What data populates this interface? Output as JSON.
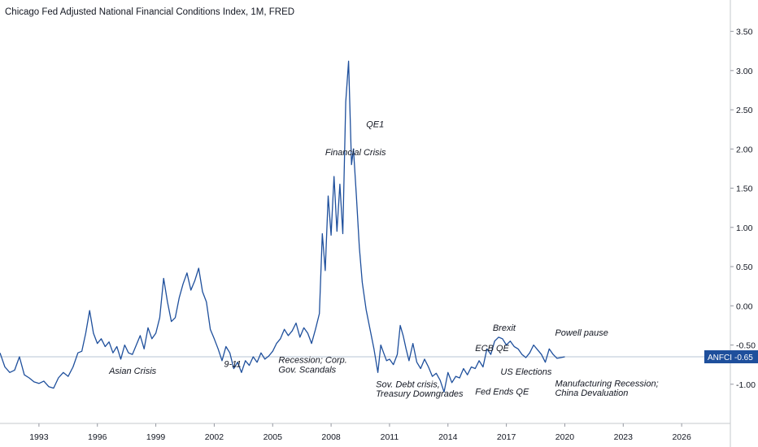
{
  "chart_data": {
    "type": "line",
    "title": "Chicago Fed Adjusted National Financial Conditions Index, 1M, FRED",
    "series": [
      {
        "name": "ANFCI",
        "color": "#1e4f9c",
        "points": [
          [
            1991.0,
            -0.6
          ],
          [
            1991.25,
            -0.78
          ],
          [
            1991.5,
            -0.85
          ],
          [
            1991.75,
            -0.82
          ],
          [
            1992.0,
            -0.65
          ],
          [
            1992.25,
            -0.88
          ],
          [
            1992.5,
            -0.92
          ],
          [
            1992.75,
            -0.97
          ],
          [
            1993.0,
            -0.99
          ],
          [
            1993.25,
            -0.96
          ],
          [
            1993.5,
            -1.03
          ],
          [
            1993.75,
            -1.05
          ],
          [
            1994.0,
            -0.92
          ],
          [
            1994.25,
            -0.85
          ],
          [
            1994.5,
            -0.9
          ],
          [
            1994.75,
            -0.78
          ],
          [
            1995.0,
            -0.6
          ],
          [
            1995.2,
            -0.58
          ],
          [
            1995.4,
            -0.35
          ],
          [
            1995.6,
            -0.06
          ],
          [
            1995.8,
            -0.35
          ],
          [
            1996.0,
            -0.48
          ],
          [
            1996.2,
            -0.42
          ],
          [
            1996.4,
            -0.52
          ],
          [
            1996.6,
            -0.46
          ],
          [
            1996.8,
            -0.6
          ],
          [
            1997.0,
            -0.52
          ],
          [
            1997.2,
            -0.68
          ],
          [
            1997.4,
            -0.5
          ],
          [
            1997.6,
            -0.6
          ],
          [
            1997.8,
            -0.62
          ],
          [
            1998.0,
            -0.5
          ],
          [
            1998.2,
            -0.38
          ],
          [
            1998.4,
            -0.55
          ],
          [
            1998.6,
            -0.28
          ],
          [
            1998.8,
            -0.42
          ],
          [
            1999.0,
            -0.35
          ],
          [
            1999.2,
            -0.15
          ],
          [
            1999.4,
            0.35
          ],
          [
            1999.6,
            0.05
          ],
          [
            1999.8,
            -0.2
          ],
          [
            2000.0,
            -0.15
          ],
          [
            2000.2,
            0.1
          ],
          [
            2000.4,
            0.28
          ],
          [
            2000.6,
            0.42
          ],
          [
            2000.8,
            0.2
          ],
          [
            2001.0,
            0.32
          ],
          [
            2001.2,
            0.48
          ],
          [
            2001.4,
            0.18
          ],
          [
            2001.6,
            0.05
          ],
          [
            2001.8,
            -0.3
          ],
          [
            2002.0,
            -0.42
          ],
          [
            2002.2,
            -0.55
          ],
          [
            2002.4,
            -0.7
          ],
          [
            2002.6,
            -0.52
          ],
          [
            2002.8,
            -0.6
          ],
          [
            2003.0,
            -0.8
          ],
          [
            2003.2,
            -0.72
          ],
          [
            2003.4,
            -0.85
          ],
          [
            2003.6,
            -0.7
          ],
          [
            2003.8,
            -0.76
          ],
          [
            2004.0,
            -0.65
          ],
          [
            2004.2,
            -0.72
          ],
          [
            2004.4,
            -0.6
          ],
          [
            2004.6,
            -0.68
          ],
          [
            2004.8,
            -0.64
          ],
          [
            2005.0,
            -0.58
          ],
          [
            2005.2,
            -0.48
          ],
          [
            2005.4,
            -0.42
          ],
          [
            2005.6,
            -0.3
          ],
          [
            2005.8,
            -0.38
          ],
          [
            2006.0,
            -0.32
          ],
          [
            2006.2,
            -0.22
          ],
          [
            2006.4,
            -0.4
          ],
          [
            2006.6,
            -0.28
          ],
          [
            2006.8,
            -0.35
          ],
          [
            2007.0,
            -0.48
          ],
          [
            2007.2,
            -0.3
          ],
          [
            2007.4,
            -0.1
          ],
          [
            2007.55,
            0.92
          ],
          [
            2007.7,
            0.45
          ],
          [
            2007.85,
            1.4
          ],
          [
            2008.0,
            0.9
          ],
          [
            2008.15,
            1.65
          ],
          [
            2008.3,
            0.95
          ],
          [
            2008.45,
            1.55
          ],
          [
            2008.6,
            0.92
          ],
          [
            2008.75,
            2.6
          ],
          [
            2008.9,
            3.12
          ],
          [
            2009.05,
            1.8
          ],
          [
            2009.15,
            2.0
          ],
          [
            2009.3,
            1.4
          ],
          [
            2009.45,
            0.75
          ],
          [
            2009.6,
            0.3
          ],
          [
            2009.8,
            -0.05
          ],
          [
            2010.0,
            -0.3
          ],
          [
            2010.2,
            -0.55
          ],
          [
            2010.4,
            -0.85
          ],
          [
            2010.55,
            -0.5
          ],
          [
            2010.7,
            -0.6
          ],
          [
            2010.85,
            -0.7
          ],
          [
            2011.0,
            -0.68
          ],
          [
            2011.2,
            -0.75
          ],
          [
            2011.4,
            -0.62
          ],
          [
            2011.55,
            -0.25
          ],
          [
            2011.7,
            -0.38
          ],
          [
            2011.85,
            -0.55
          ],
          [
            2012.0,
            -0.7
          ],
          [
            2012.2,
            -0.48
          ],
          [
            2012.4,
            -0.72
          ],
          [
            2012.6,
            -0.8
          ],
          [
            2012.8,
            -0.68
          ],
          [
            2013.0,
            -0.78
          ],
          [
            2013.2,
            -0.9
          ],
          [
            2013.4,
            -0.86
          ],
          [
            2013.6,
            -0.95
          ],
          [
            2013.8,
            -1.1
          ],
          [
            2014.0,
            -0.85
          ],
          [
            2014.2,
            -0.98
          ],
          [
            2014.4,
            -0.9
          ],
          [
            2014.6,
            -0.92
          ],
          [
            2014.8,
            -0.8
          ],
          [
            2015.0,
            -0.88
          ],
          [
            2015.2,
            -0.78
          ],
          [
            2015.4,
            -0.8
          ],
          [
            2015.6,
            -0.7
          ],
          [
            2015.8,
            -0.78
          ],
          [
            2016.0,
            -0.55
          ],
          [
            2016.2,
            -0.62
          ],
          [
            2016.4,
            -0.45
          ],
          [
            2016.6,
            -0.4
          ],
          [
            2016.8,
            -0.42
          ],
          [
            2017.0,
            -0.5
          ],
          [
            2017.2,
            -0.45
          ],
          [
            2017.4,
            -0.52
          ],
          [
            2017.6,
            -0.55
          ],
          [
            2017.8,
            -0.62
          ],
          [
            2018.0,
            -0.66
          ],
          [
            2018.2,
            -0.6
          ],
          [
            2018.4,
            -0.5
          ],
          [
            2018.6,
            -0.56
          ],
          [
            2018.8,
            -0.62
          ],
          [
            2019.0,
            -0.72
          ],
          [
            2019.2,
            -0.55
          ],
          [
            2019.4,
            -0.62
          ],
          [
            2019.6,
            -0.67
          ],
          [
            2019.8,
            -0.66
          ],
          [
            2020.0,
            -0.65
          ]
        ]
      }
    ],
    "x_ticks": [
      "1993",
      "1996",
      "1999",
      "2002",
      "2005",
      "2008",
      "2011",
      "2014",
      "2017",
      "2020",
      "2023",
      "2026"
    ],
    "y_ticks": [
      "3.50",
      "3.00",
      "2.50",
      "2.00",
      "1.50",
      "1.00",
      "0.50",
      "0.00",
      "-0.50",
      "-1.00"
    ],
    "xlim": [
      1991.0,
      2028.5
    ],
    "ylim": [
      -1.5,
      3.9
    ],
    "grid": false,
    "last_value": {
      "label": "ANFCI",
      "value": "-0.65",
      "color": "#1e4f9c"
    },
    "annotations": [
      {
        "text": "Asian Crisis",
        "x": 1996.6,
        "y": -0.87
      },
      {
        "text": "9-11",
        "x": 2002.5,
        "y": -0.78
      },
      {
        "text": "Recession; Corp.",
        "x": 2005.3,
        "y": -0.73
      },
      {
        "text": "Gov. Scandals",
        "x": 2005.3,
        "y": -0.85
      },
      {
        "text": "Financial Crisis",
        "x": 2007.7,
        "y": 1.92
      },
      {
        "text": "QE1",
        "x": 2009.8,
        "y": 2.28
      },
      {
        "text": "Sov. Debt crisis,",
        "x": 2010.3,
        "y": -1.04
      },
      {
        "text": "Treasury Downgrades",
        "x": 2010.3,
        "y": -1.16
      },
      {
        "text": "ECB QE",
        "x": 2015.4,
        "y": -0.58
      },
      {
        "text": "Fed Ends QE",
        "x": 2015.4,
        "y": -1.13
      },
      {
        "text": "Brexit",
        "x": 2016.3,
        "y": -0.32
      },
      {
        "text": "US Elections",
        "x": 2016.7,
        "y": -0.88
      },
      {
        "text": "Powell pause",
        "x": 2019.5,
        "y": -0.38
      },
      {
        "text": "Manufacturing Recession;",
        "x": 2019.5,
        "y": -1.03
      },
      {
        "text": "China Devaluation",
        "x": 2019.5,
        "y": -1.15
      }
    ]
  }
}
